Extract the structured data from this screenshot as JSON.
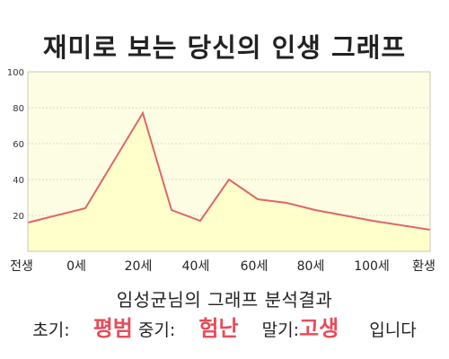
{
  "title": "재미로 보는 당신의 인생 그래프",
  "chart_data": {
    "type": "area",
    "title": "재미로 보는 당신의 인생 그래프",
    "xlabel": "",
    "ylabel": "",
    "ylim": [
      0,
      100
    ],
    "yticks": [
      20,
      40,
      60,
      80,
      100
    ],
    "grid": true,
    "x_tick_labels": [
      "전생",
      "0세",
      "20세",
      "40세",
      "60세",
      "80세",
      "100세",
      "환생"
    ],
    "x": [
      "전생",
      "0세",
      "20세",
      "26세",
      "40세",
      "50세",
      "60세",
      "70세",
      "80세",
      "100세",
      "환생"
    ],
    "values": [
      16,
      24,
      77,
      23,
      17,
      40,
      29,
      27,
      23,
      17,
      12
    ],
    "colors": {
      "line": "#e06666",
      "fill": "#ffffcc",
      "plot_background": "#fdfde4",
      "grid": "#d9d9c9",
      "result_text": "#e84c5a"
    }
  },
  "summary": "임성균님의 그래프 분석결과",
  "result": {
    "early_label": "초기:",
    "early_value": "평범",
    "middle_label": "중기:",
    "middle_value": "험난",
    "late_label": "말기:",
    "late_value": "고생",
    "suffix": "입니다"
  }
}
